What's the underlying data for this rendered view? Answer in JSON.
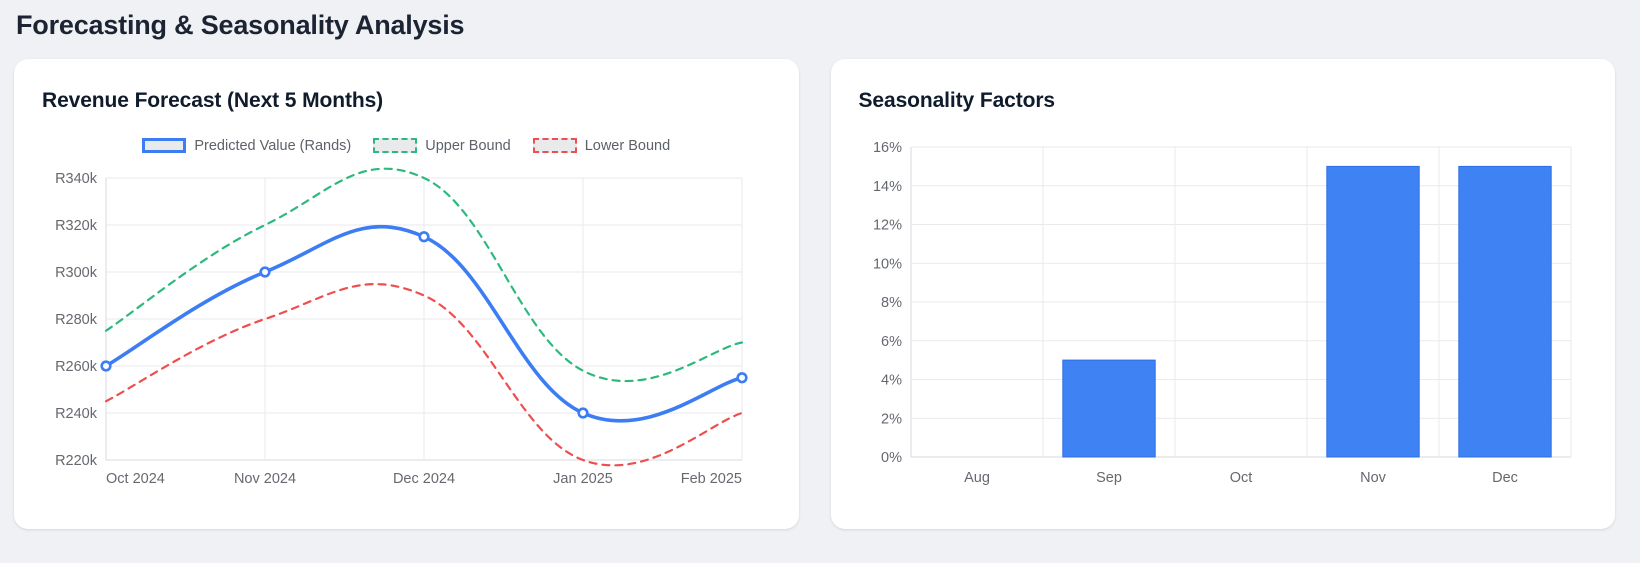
{
  "page": {
    "title": "Forecasting & Seasonality Analysis"
  },
  "colors": {
    "accent_blue": "#3d7df3",
    "bar_blue": "#3e82f3",
    "bound_green": "#2db97d",
    "bound_red": "#ef4e4e",
    "grid": "#e9eaed",
    "axis_border": "#d7dadf",
    "axis_text": "#65696f",
    "heading_text": "#101b2c"
  },
  "forecast_card": {
    "title": "Revenue Forecast (Next 5 Months)"
  },
  "seasonality_card": {
    "title": "Seasonality Factors"
  },
  "chart_data": [
    {
      "type": "line",
      "title": "Revenue Forecast (Next 5 Months)",
      "categories": [
        "Oct 2024",
        "Nov 2024",
        "Dec 2024",
        "Jan 2025",
        "Feb 2025"
      ],
      "series": [
        {
          "name": "Predicted Value (Rands)",
          "values": [
            260000,
            300000,
            315000,
            240000,
            255000
          ],
          "color": "#3d7df3",
          "style": "solid",
          "points": true
        },
        {
          "name": "Upper Bound",
          "values": [
            275000,
            320000,
            340000,
            258000,
            270000
          ],
          "color": "#2db97d",
          "style": "dashed",
          "points": false
        },
        {
          "name": "Lower Bound",
          "values": [
            245000,
            280000,
            290000,
            220000,
            240000
          ],
          "color": "#ef4e4e",
          "style": "dashed",
          "points": false
        }
      ],
      "ylim": [
        220000,
        340000
      ],
      "ytick_step": 20000,
      "ytick_labels": [
        "R220k",
        "R240k",
        "R260k",
        "R280k",
        "R300k",
        "R320k",
        "R340k"
      ],
      "grid": true,
      "legend_position": "top",
      "curve": "smooth"
    },
    {
      "type": "bar",
      "title": "Seasonality Factors",
      "categories": [
        "Aug",
        "Sep",
        "Oct",
        "Nov",
        "Dec"
      ],
      "values": [
        0,
        5,
        0,
        15,
        15
      ],
      "unit": "%",
      "ylim": [
        0,
        16
      ],
      "ytick_step": 2,
      "ytick_labels": [
        "0%",
        "2%",
        "4%",
        "6%",
        "8%",
        "10%",
        "12%",
        "14%",
        "16%"
      ],
      "grid": true,
      "legend_position": "none"
    }
  ]
}
